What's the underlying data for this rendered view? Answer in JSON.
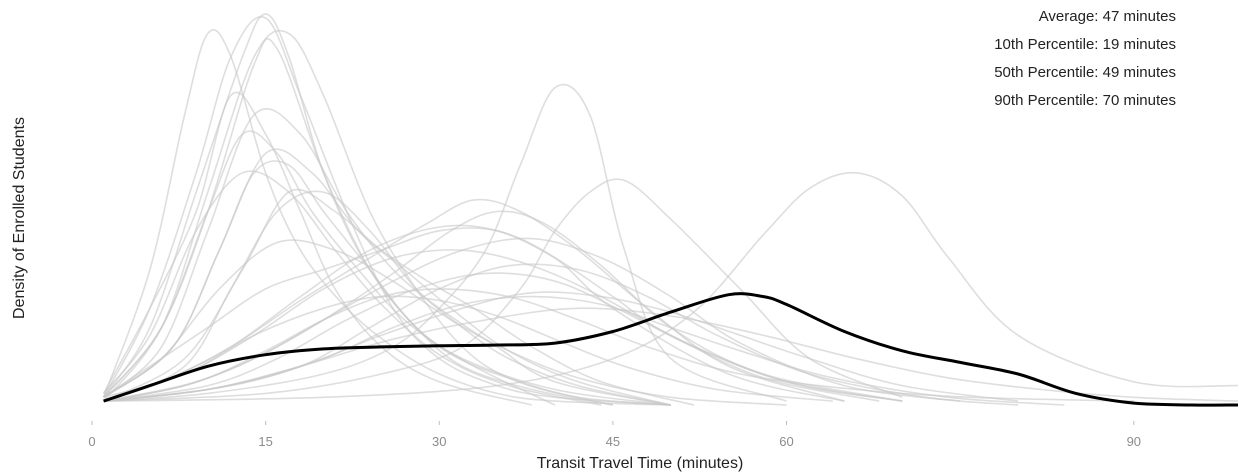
{
  "chart_data": {
    "type": "line",
    "xlabel": "Transit Travel Time (minutes)",
    "ylabel": "Density of Enrolled Students",
    "xlim": [
      0,
      99
    ],
    "ylim": [
      0,
      1.0
    ],
    "x_ticks": [
      0,
      15,
      30,
      45,
      60,
      90
    ],
    "y_ticks": [],
    "grid": false,
    "legend": "none",
    "annotations": [
      "Average: 47 minutes",
      "10th Percentile: 19 minutes",
      "50th Percentile: 49 minutes",
      "90th Percentile: 70 minutes"
    ],
    "colors": {
      "overall": "#000000",
      "schools": "#c8c8c8"
    },
    "overall_series": {
      "x": [
        1,
        5,
        10,
        15,
        20,
        25,
        30,
        35,
        40,
        45,
        50,
        55,
        58,
        60,
        65,
        70,
        75,
        80,
        85,
        90,
        95,
        99
      ],
      "y": [
        0.01,
        0.05,
        0.1,
        0.13,
        0.145,
        0.15,
        0.153,
        0.155,
        0.16,
        0.19,
        0.24,
        0.285,
        0.28,
        0.26,
        0.19,
        0.14,
        0.11,
        0.08,
        0.03,
        0.005,
        0.0,
        0.0
      ]
    },
    "school_series": [
      {
        "x": [
          1,
          5,
          8,
          10,
          12,
          15,
          18,
          22,
          26,
          30,
          35,
          40,
          50
        ],
        "y": [
          0.02,
          0.35,
          0.75,
          0.96,
          0.9,
          0.6,
          0.4,
          0.25,
          0.15,
          0.08,
          0.03,
          0.01,
          0
        ]
      },
      {
        "x": [
          1,
          5,
          9,
          12,
          15,
          18,
          22,
          26,
          30,
          35,
          40,
          50
        ],
        "y": [
          0.02,
          0.25,
          0.6,
          0.9,
          1.0,
          0.8,
          0.5,
          0.25,
          0.12,
          0.05,
          0.02,
          0
        ]
      },
      {
        "x": [
          1,
          6,
          10,
          14,
          17,
          20,
          24,
          28,
          32,
          36,
          42,
          50
        ],
        "y": [
          0.01,
          0.2,
          0.55,
          0.9,
          0.96,
          0.8,
          0.5,
          0.3,
          0.15,
          0.07,
          0.02,
          0
        ]
      },
      {
        "x": [
          1,
          6,
          10,
          14,
          16,
          20,
          24,
          28,
          32,
          38,
          45
        ],
        "y": [
          0.02,
          0.2,
          0.5,
          0.88,
          0.92,
          0.6,
          0.35,
          0.2,
          0.1,
          0.04,
          0
        ]
      },
      {
        "x": [
          1,
          5,
          9,
          13,
          15,
          17,
          20,
          24,
          30,
          38,
          45
        ],
        "y": [
          0.02,
          0.2,
          0.55,
          0.9,
          1.01,
          0.9,
          0.6,
          0.35,
          0.15,
          0.05,
          0
        ]
      },
      {
        "x": [
          1,
          6,
          10,
          14,
          18,
          22,
          26,
          30,
          35,
          40,
          50
        ],
        "y": [
          0.02,
          0.15,
          0.45,
          0.75,
          0.7,
          0.5,
          0.35,
          0.25,
          0.15,
          0.06,
          0
        ]
      },
      {
        "x": [
          1,
          7,
          11,
          15,
          19,
          23,
          27,
          31,
          36,
          42,
          50
        ],
        "y": [
          0.02,
          0.15,
          0.4,
          0.65,
          0.6,
          0.45,
          0.35,
          0.25,
          0.14,
          0.06,
          0
        ]
      },
      {
        "x": [
          1,
          8,
          13,
          17,
          21,
          25,
          29,
          33,
          38,
          44,
          52
        ],
        "y": [
          0.01,
          0.12,
          0.35,
          0.55,
          0.5,
          0.4,
          0.32,
          0.25,
          0.15,
          0.06,
          0
        ]
      },
      {
        "x": [
          1,
          8,
          12,
          16,
          20,
          24,
          28,
          32,
          36,
          42,
          50
        ],
        "y": [
          0.01,
          0.1,
          0.3,
          0.5,
          0.55,
          0.45,
          0.3,
          0.2,
          0.12,
          0.05,
          0
        ]
      },
      {
        "x": [
          1,
          6,
          10,
          13,
          16,
          19,
          23,
          27,
          32,
          40,
          50
        ],
        "y": [
          0.02,
          0.2,
          0.5,
          0.7,
          0.65,
          0.5,
          0.35,
          0.22,
          0.12,
          0.04,
          0
        ]
      },
      {
        "x": [
          1,
          5,
          9,
          12,
          15,
          18,
          21,
          25,
          30,
          38
        ],
        "y": [
          0.03,
          0.25,
          0.5,
          0.8,
          0.7,
          0.5,
          0.3,
          0.15,
          0.06,
          0
        ]
      },
      {
        "x": [
          1,
          7,
          11,
          14,
          17,
          20,
          24,
          28,
          33,
          40
        ],
        "y": [
          0.02,
          0.15,
          0.4,
          0.6,
          0.62,
          0.5,
          0.35,
          0.2,
          0.1,
          0
        ]
      },
      {
        "x": [
          1,
          5,
          10,
          15,
          20,
          25,
          30,
          35,
          40,
          45,
          55,
          65
        ],
        "y": [
          0.02,
          0.1,
          0.2,
          0.3,
          0.35,
          0.4,
          0.45,
          0.45,
          0.38,
          0.25,
          0.08,
          0.01
        ]
      },
      {
        "x": [
          1,
          6,
          12,
          18,
          24,
          29,
          33,
          37,
          42,
          48,
          55,
          65
        ],
        "y": [
          0.01,
          0.06,
          0.15,
          0.27,
          0.38,
          0.47,
          0.53,
          0.5,
          0.4,
          0.25,
          0.1,
          0.01
        ]
      },
      {
        "x": [
          1,
          8,
          14,
          20,
          26,
          31,
          35,
          39,
          44,
          50,
          58,
          70
        ],
        "y": [
          0.01,
          0.05,
          0.12,
          0.22,
          0.34,
          0.45,
          0.5,
          0.47,
          0.36,
          0.2,
          0.08,
          0.01
        ]
      },
      {
        "x": [
          1,
          6,
          12,
          18,
          24,
          30,
          35,
          40,
          45,
          50,
          60,
          70
        ],
        "y": [
          0.01,
          0.06,
          0.15,
          0.28,
          0.4,
          0.46,
          0.45,
          0.38,
          0.28,
          0.18,
          0.06,
          0.01
        ]
      },
      {
        "x": [
          1,
          8,
          14,
          20,
          26,
          32,
          38,
          44,
          50,
          56,
          65,
          75
        ],
        "y": [
          0.01,
          0.05,
          0.12,
          0.22,
          0.32,
          0.4,
          0.43,
          0.38,
          0.28,
          0.16,
          0.05,
          0.01
        ]
      },
      {
        "x": [
          1,
          10,
          18,
          24,
          30,
          36,
          42,
          48,
          54,
          62,
          72,
          80
        ],
        "y": [
          0.01,
          0.04,
          0.1,
          0.2,
          0.3,
          0.36,
          0.35,
          0.28,
          0.18,
          0.08,
          0.02,
          0
        ]
      },
      {
        "x": [
          1,
          8,
          14,
          20,
          26,
          32,
          38,
          44,
          50,
          58,
          68
        ],
        "y": [
          0.01,
          0.08,
          0.18,
          0.3,
          0.38,
          0.4,
          0.36,
          0.28,
          0.18,
          0.07,
          0.01
        ]
      },
      {
        "x": [
          1,
          10,
          16,
          22,
          28,
          34,
          40,
          46,
          52,
          60,
          70
        ],
        "y": [
          0.01,
          0.05,
          0.12,
          0.22,
          0.3,
          0.34,
          0.32,
          0.24,
          0.15,
          0.06,
          0.01
        ]
      },
      {
        "x": [
          1,
          10,
          20,
          26,
          30,
          34,
          37,
          40,
          43,
          46,
          50,
          60
        ],
        "y": [
          0.01,
          0.03,
          0.08,
          0.15,
          0.25,
          0.4,
          0.62,
          0.82,
          0.75,
          0.4,
          0.12,
          0.01
        ]
      },
      {
        "x": [
          1,
          15,
          25,
          32,
          37,
          40,
          43,
          46,
          50,
          56,
          62,
          70
        ],
        "y": [
          0.01,
          0.03,
          0.08,
          0.15,
          0.3,
          0.45,
          0.55,
          0.58,
          0.48,
          0.3,
          0.12,
          0.02
        ]
      },
      {
        "x": [
          1,
          20,
          35,
          45,
          52,
          58,
          62,
          66,
          70,
          74,
          80,
          90,
          99
        ],
        "y": [
          0.01,
          0.02,
          0.05,
          0.12,
          0.24,
          0.44,
          0.56,
          0.6,
          0.54,
          0.38,
          0.18,
          0.06,
          0.05
        ]
      },
      {
        "x": [
          1,
          10,
          18,
          25,
          32,
          38,
          44,
          50,
          56,
          62,
          70,
          80
        ],
        "y": [
          0.01,
          0.04,
          0.1,
          0.18,
          0.25,
          0.29,
          0.28,
          0.24,
          0.18,
          0.12,
          0.05,
          0.01
        ]
      },
      {
        "x": [
          1,
          8,
          14,
          20,
          25,
          30,
          35,
          40,
          46,
          54,
          64
        ],
        "y": [
          0.02,
          0.08,
          0.18,
          0.25,
          0.28,
          0.27,
          0.23,
          0.17,
          0.1,
          0.04,
          0.01
        ]
      },
      {
        "x": [
          1,
          12,
          20,
          26,
          32,
          38,
          44,
          50,
          56,
          64,
          74,
          84
        ],
        "y": [
          0.01,
          0.05,
          0.12,
          0.2,
          0.26,
          0.28,
          0.26,
          0.2,
          0.14,
          0.07,
          0.02,
          0
        ]
      },
      {
        "x": [
          1,
          6,
          11,
          16,
          21,
          26,
          31,
          36,
          42,
          50,
          60
        ],
        "y": [
          0.02,
          0.12,
          0.3,
          0.42,
          0.4,
          0.32,
          0.22,
          0.14,
          0.07,
          0.02,
          0
        ]
      },
      {
        "x": [
          1,
          5,
          9,
          13,
          17,
          21,
          25,
          30,
          36,
          44
        ],
        "y": [
          0.03,
          0.18,
          0.45,
          0.6,
          0.55,
          0.4,
          0.26,
          0.13,
          0.05,
          0
        ]
      },
      {
        "x": [
          1,
          9,
          15,
          20,
          25,
          30,
          36,
          42,
          48,
          56,
          66,
          76,
          90
        ],
        "y": [
          0.01,
          0.06,
          0.14,
          0.22,
          0.28,
          0.3,
          0.28,
          0.22,
          0.15,
          0.08,
          0.04,
          0.02,
          0.01
        ]
      },
      {
        "x": [
          1,
          10,
          18,
          26,
          34,
          42,
          50,
          58,
          66,
          74,
          82,
          90,
          99
        ],
        "y": [
          0.01,
          0.04,
          0.1,
          0.17,
          0.22,
          0.25,
          0.23,
          0.18,
          0.12,
          0.07,
          0.04,
          0.02,
          0.01
        ]
      }
    ]
  }
}
